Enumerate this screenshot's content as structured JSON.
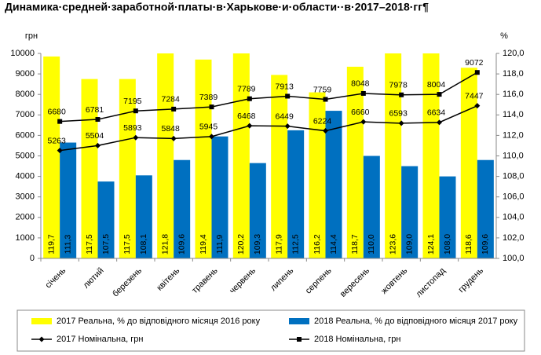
{
  "chart_data": {
    "type": "combo",
    "title": "Динамика·средней·заработной·платы·в·Харькове·и·области··в·2017–2018·гг¶",
    "y_label": "грн",
    "y2_label": "%",
    "categories": [
      "січень",
      "лютий",
      "березень",
      "квітень",
      "травень",
      "червень",
      "липень",
      "серпень",
      "вересень",
      "жовтень",
      "листопад",
      "грудень"
    ],
    "ylim": [
      0,
      10000
    ],
    "yticks": [
      0,
      1000,
      2000,
      3000,
      4000,
      5000,
      6000,
      7000,
      8000,
      9000,
      10000
    ],
    "y2lim": [
      100,
      120
    ],
    "y2ticks": [
      {
        "value": 100,
        "label": "100,0"
      },
      {
        "value": 102,
        "label": "102,0"
      },
      {
        "value": 104,
        "label": "104,0"
      },
      {
        "value": 106,
        "label": "106,0"
      },
      {
        "value": 108,
        "label": "108,0"
      },
      {
        "value": 110,
        "label": "110,0"
      },
      {
        "value": 112,
        "label": "112,0"
      },
      {
        "value": 114,
        "label": "114,0"
      },
      {
        "value": 116,
        "label": "116,0"
      },
      {
        "value": 118,
        "label": "118,0"
      },
      {
        "value": 120,
        "label": "120,0"
      }
    ],
    "grid": false,
    "series": [
      {
        "name": "2017 Реальна, % до відповідного місяця 2016 року",
        "type": "bar",
        "axis": "y2",
        "color": "#ffff00",
        "values": [
          119.7,
          117.5,
          117.5,
          121.8,
          119.4,
          120.2,
          117.9,
          116.2,
          118.7,
          123.6,
          124.1,
          118.6
        ],
        "value_labels": [
          "119,7",
          "117,5",
          "117,5",
          "121,8",
          "119,4",
          "120,2",
          "117,9",
          "116,2",
          "118,7",
          "123,6",
          "124,1",
          "118,6"
        ]
      },
      {
        "name": "2018 Реальна, % до відповідного місяця 2017 року",
        "type": "bar",
        "axis": "y2",
        "color": "#0070c0",
        "values": [
          111.3,
          107.5,
          108.1,
          109.6,
          111.9,
          109.3,
          112.5,
          114.4,
          110.0,
          109.0,
          108.0,
          109.6
        ],
        "value_labels": [
          "111,3",
          "107,5",
          "108,1",
          "109,6",
          "111,9",
          "109,3",
          "112,5",
          "114,4",
          "110,0",
          "109,0",
          "108,0",
          "109,6"
        ]
      },
      {
        "name": "2017 Номінальна, грн",
        "type": "line",
        "marker": "diamond",
        "color": "#000000",
        "values": [
          5263,
          5504,
          5893,
          5848,
          5945,
          6468,
          6449,
          6224,
          6660,
          6593,
          6634,
          7447
        ]
      },
      {
        "name": "2018 Номінальна, грн",
        "type": "line",
        "marker": "square",
        "color": "#000000",
        "values": [
          6680,
          6781,
          7195,
          7284,
          7389,
          7789,
          7913,
          7759,
          8048,
          7978,
          8004,
          9072
        ]
      }
    ]
  }
}
